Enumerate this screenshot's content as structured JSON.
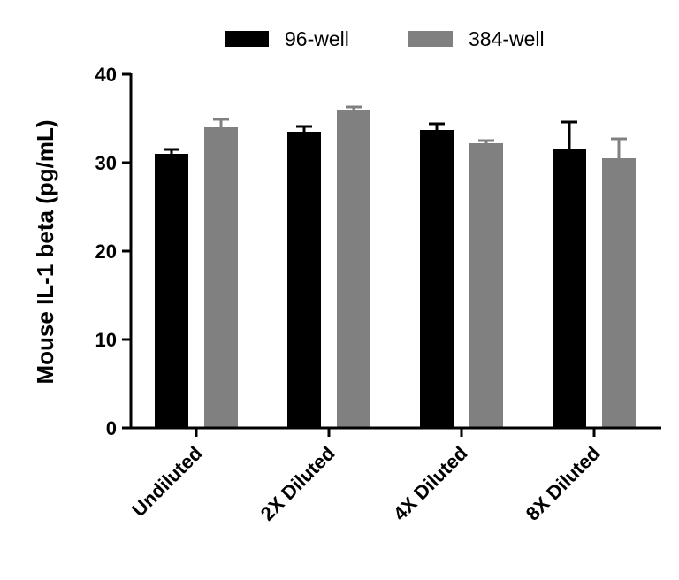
{
  "chart_data": {
    "type": "bar",
    "title": "",
    "xlabel": "",
    "ylabel": "Mouse IL-1 beta (pg/mL)",
    "ylim": [
      0,
      40
    ],
    "yticks": [
      "0",
      "10",
      "20",
      "30",
      "40"
    ],
    "categories": [
      "Undiluted",
      "2X Diluted",
      "4X Diluted",
      "8X Diluted"
    ],
    "series": [
      {
        "name": "96-well",
        "color": "#000000",
        "values": [
          31.0,
          33.5,
          33.7,
          31.6
        ],
        "errors": [
          0.5,
          0.6,
          0.7,
          3.0
        ]
      },
      {
        "name": "384-well",
        "color": "#808080",
        "values": [
          34.0,
          36.0,
          32.2,
          30.5
        ],
        "errors": [
          0.9,
          0.3,
          0.3,
          2.2
        ]
      }
    ],
    "legend": "top"
  }
}
